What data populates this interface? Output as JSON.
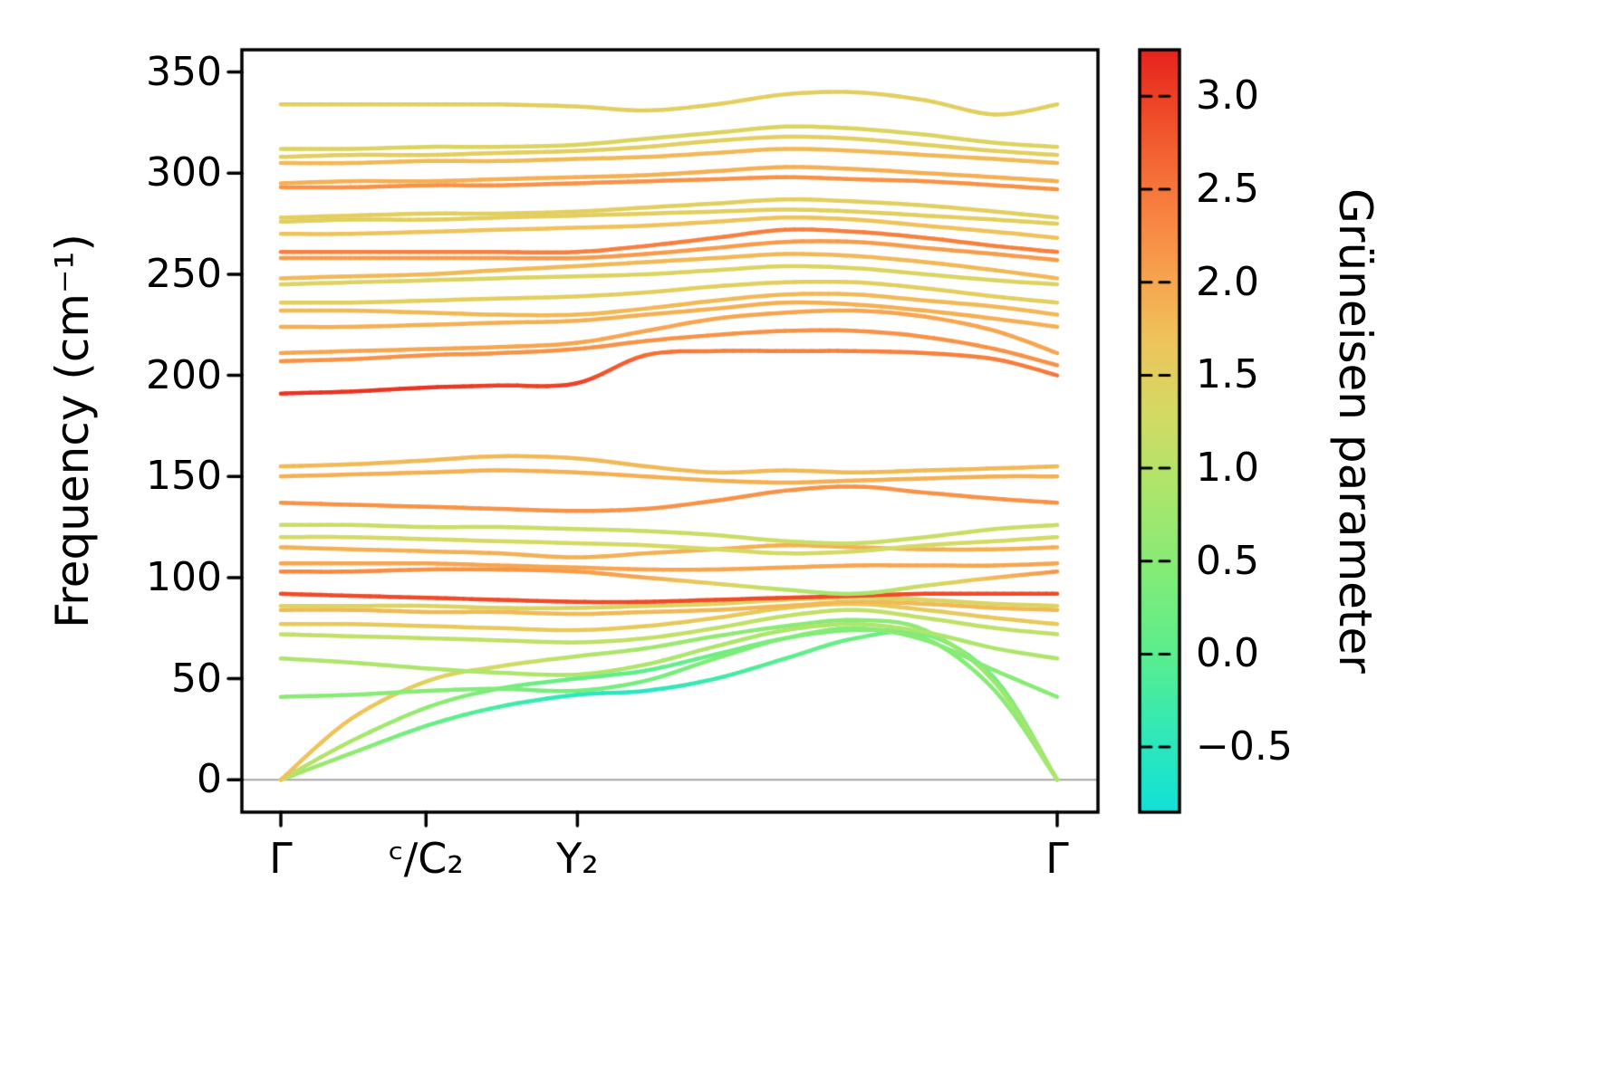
{
  "figure": {
    "background": "#ffffff",
    "spine_color": "#000000",
    "zero_line_color": "#a6a6a6"
  },
  "chart_data": {
    "type": "line",
    "title": "",
    "xlabel": "",
    "ylabel": "Frequency (cm⁻¹)",
    "colorbar_label": "Grüneisen parameter",
    "grid": false,
    "legend": "none (colorbar encodes value)",
    "ylim": [
      -16,
      361
    ],
    "yticks": [
      0,
      50,
      100,
      150,
      200,
      250,
      300,
      350
    ],
    "ytick_labels": [
      "0",
      "50",
      "100",
      "150",
      "200",
      "250",
      "300",
      "350"
    ],
    "xticks": [
      {
        "t": 0.0,
        "label": "Γ"
      },
      {
        "t": 0.187,
        "label": "ᶜ/C₂"
      },
      {
        "t": 0.382,
        "label": "Y₂"
      },
      {
        "t": 1.0,
        "label": "Γ"
      }
    ],
    "zero_line_y": 0,
    "colorbar": {
      "vmin": -0.85,
      "vmax": 3.25,
      "ticks": [
        3.0,
        2.5,
        2.0,
        1.5,
        1.0,
        0.5,
        0.0,
        -0.5
      ],
      "tick_labels": [
        "3.0",
        "2.5",
        "2.0",
        "1.5",
        "1.0",
        "0.5",
        "0.0",
        "−0.5"
      ],
      "colormap": [
        {
          "v": -0.85,
          "c": "#12E1D8"
        },
        {
          "v": -0.4,
          "c": "#33E9B5"
        },
        {
          "v": 0.0,
          "c": "#5BEE8E"
        },
        {
          "v": 0.45,
          "c": "#84EC77"
        },
        {
          "v": 0.9,
          "c": "#AEE56C"
        },
        {
          "v": 1.3,
          "c": "#D4DA64"
        },
        {
          "v": 1.7,
          "c": "#EFC35B"
        },
        {
          "v": 2.05,
          "c": "#F7A14E"
        },
        {
          "v": 2.45,
          "c": "#F77B3D"
        },
        {
          "v": 2.85,
          "c": "#F1512B"
        },
        {
          "v": 3.25,
          "c": "#E5231D"
        }
      ]
    },
    "x": [
      0,
      0.09,
      0.19,
      0.28,
      0.38,
      0.47,
      0.56,
      0.65,
      0.74,
      0.83,
      0.92,
      1.0
    ],
    "series": [
      {
        "f": [
          0,
          13,
          27,
          36,
          42,
          44,
          50,
          60,
          70,
          72,
          50,
          0
        ],
        "g": [
          0.9,
          0.6,
          0.2,
          -0.2,
          -0.5,
          -0.55,
          -0.3,
          0.0,
          0.2,
          0.3,
          0.3,
          0.6
        ]
      },
      {
        "f": [
          0,
          19,
          36,
          45,
          50,
          54,
          62,
          70,
          74,
          70,
          44,
          0
        ],
        "g": [
          1.1,
          0.9,
          0.6,
          0.3,
          0.1,
          0.0,
          0.2,
          0.3,
          0.4,
          0.4,
          0.5,
          0.7
        ]
      },
      {
        "f": [
          0,
          30,
          49,
          56,
          61,
          65,
          71,
          76,
          79,
          74,
          48,
          0
        ],
        "g": [
          1.7,
          1.7,
          1.5,
          1.3,
          1.0,
          0.8,
          0.6,
          0.5,
          0.5,
          0.6,
          0.7,
          0.9
        ]
      },
      {
        "f": [
          41,
          42,
          44,
          45,
          44,
          49,
          60,
          70,
          75,
          69,
          54,
          41
        ],
        "g": [
          0.5,
          0.5,
          0.5,
          0.4,
          0.3,
          0.3,
          0.4,
          0.4,
          0.5,
          0.5,
          0.5,
          0.5
        ]
      },
      {
        "f": [
          60,
          58,
          55,
          53,
          52,
          57,
          66,
          74,
          77,
          73,
          65,
          60
        ],
        "g": 0.9
      },
      {
        "f": [
          72,
          71,
          70,
          69,
          68,
          70,
          75,
          81,
          84,
          80,
          75,
          72
        ],
        "g": 1.1
      },
      {
        "f": [
          77,
          77,
          76,
          75,
          74,
          76,
          80,
          85,
          87,
          84,
          80,
          77
        ],
        "g": 1.6
      },
      {
        "f": [
          84,
          84,
          83,
          83,
          82,
          83,
          84,
          86,
          88,
          87,
          85,
          84
        ],
        "g": 1.8
      },
      {
        "f": [
          86,
          86,
          86,
          85,
          85,
          86,
          87,
          89,
          90,
          89,
          87,
          86
        ],
        "g": 1.4
      },
      {
        "f": [
          92,
          91,
          90,
          89,
          88,
          88,
          89,
          90,
          91,
          92,
          92,
          92
        ],
        "g": 2.9
      },
      {
        "f": [
          103,
          103,
          104,
          104,
          103,
          100,
          97,
          94,
          92,
          96,
          100,
          103
        ],
        "g": [
          2.3,
          2.3,
          2.2,
          2.2,
          2.1,
          2.0,
          1.5,
          1.0,
          0.8,
          1.2,
          1.8,
          2.2
        ]
      },
      {
        "f": [
          107,
          107,
          107,
          106,
          105,
          104,
          104,
          105,
          106,
          106,
          106,
          107
        ],
        "g": 2.0
      },
      {
        "f": [
          115,
          114,
          113,
          112,
          110,
          112,
          114,
          116,
          115,
          114,
          114,
          115
        ],
        "g": 1.9
      },
      {
        "f": [
          120,
          120,
          119,
          118,
          117,
          116,
          114,
          112,
          113,
          116,
          118,
          120
        ],
        "g": 1.3
      },
      {
        "f": [
          126,
          126,
          125,
          125,
          124,
          123,
          121,
          118,
          117,
          120,
          124,
          126
        ],
        "g": 1.2
      },
      {
        "f": [
          137,
          136,
          135,
          134,
          133,
          134,
          138,
          143,
          145,
          142,
          139,
          137
        ],
        "g": 2.2
      },
      {
        "f": [
          150,
          151,
          152,
          153,
          152,
          150,
          148,
          147,
          148,
          149,
          150,
          150
        ],
        "g": 1.9
      },
      {
        "f": [
          155,
          156,
          158,
          160,
          159,
          155,
          152,
          153,
          152,
          153,
          154,
          155
        ],
        "g": 1.8
      },
      {
        "f": [
          191,
          192,
          194,
          195,
          196,
          210,
          212,
          212,
          212,
          211,
          208,
          200
        ],
        "g": [
          3.1,
          3.1,
          3.1,
          3.0,
          3.0,
          2.6,
          2.4,
          2.4,
          2.4,
          2.4,
          2.4,
          2.5
        ]
      },
      {
        "f": [
          207,
          208,
          210,
          211,
          213,
          217,
          220,
          222,
          222,
          219,
          213,
          205
        ],
        "g": 2.2
      },
      {
        "f": [
          211,
          212,
          213,
          214,
          216,
          222,
          228,
          231,
          232,
          229,
          222,
          211
        ],
        "g": 2.0
      },
      {
        "f": [
          224,
          224,
          225,
          226,
          227,
          230,
          233,
          236,
          235,
          232,
          228,
          224
        ],
        "g": 1.9
      },
      {
        "f": [
          232,
          232,
          231,
          230,
          230,
          233,
          237,
          240,
          240,
          237,
          234,
          230
        ],
        "g": 1.8
      },
      {
        "f": [
          236,
          236,
          237,
          238,
          239,
          241,
          244,
          246,
          246,
          243,
          239,
          236
        ],
        "g": 1.5
      },
      {
        "f": [
          245,
          246,
          247,
          248,
          249,
          250,
          252,
          254,
          253,
          250,
          247,
          245
        ],
        "g": 1.4
      },
      {
        "f": [
          248,
          249,
          250,
          252,
          254,
          256,
          258,
          260,
          259,
          256,
          252,
          248
        ],
        "g": 1.8
      },
      {
        "f": [
          258,
          258,
          258,
          258,
          258,
          260,
          263,
          266,
          266,
          263,
          260,
          257
        ],
        "g": 2.1
      },
      {
        "f": [
          261,
          261,
          261,
          261,
          261,
          264,
          268,
          272,
          271,
          268,
          264,
          261
        ],
        "g": 2.4
      },
      {
        "f": [
          270,
          270,
          271,
          272,
          273,
          274,
          276,
          278,
          277,
          274,
          271,
          268
        ],
        "g": 1.7
      },
      {
        "f": [
          276,
          277,
          277,
          278,
          279,
          280,
          281,
          282,
          281,
          279,
          277,
          275
        ],
        "g": 1.5
      },
      {
        "f": [
          278,
          279,
          280,
          280,
          281,
          283,
          285,
          287,
          286,
          284,
          281,
          278
        ],
        "g": 1.5
      },
      {
        "f": [
          293,
          293,
          294,
          294,
          295,
          296,
          297,
          298,
          297,
          296,
          294,
          292
        ],
        "g": 2.2
      },
      {
        "f": [
          295,
          296,
          296,
          297,
          298,
          299,
          301,
          303,
          302,
          300,
          298,
          296
        ],
        "g": 1.9
      },
      {
        "f": [
          305,
          305,
          306,
          306,
          307,
          308,
          310,
          312,
          311,
          309,
          307,
          305
        ],
        "g": 1.8
      },
      {
        "f": [
          308,
          309,
          309,
          310,
          311,
          313,
          316,
          318,
          317,
          314,
          311,
          309
        ],
        "g": 1.5
      },
      {
        "f": [
          312,
          312,
          313,
          313,
          314,
          317,
          320,
          323,
          322,
          319,
          315,
          313
        ],
        "g": 1.4
      },
      {
        "f": [
          334,
          334,
          334,
          334,
          333,
          331,
          334,
          339,
          340,
          336,
          329,
          334
        ],
        "g": 1.5
      }
    ]
  }
}
